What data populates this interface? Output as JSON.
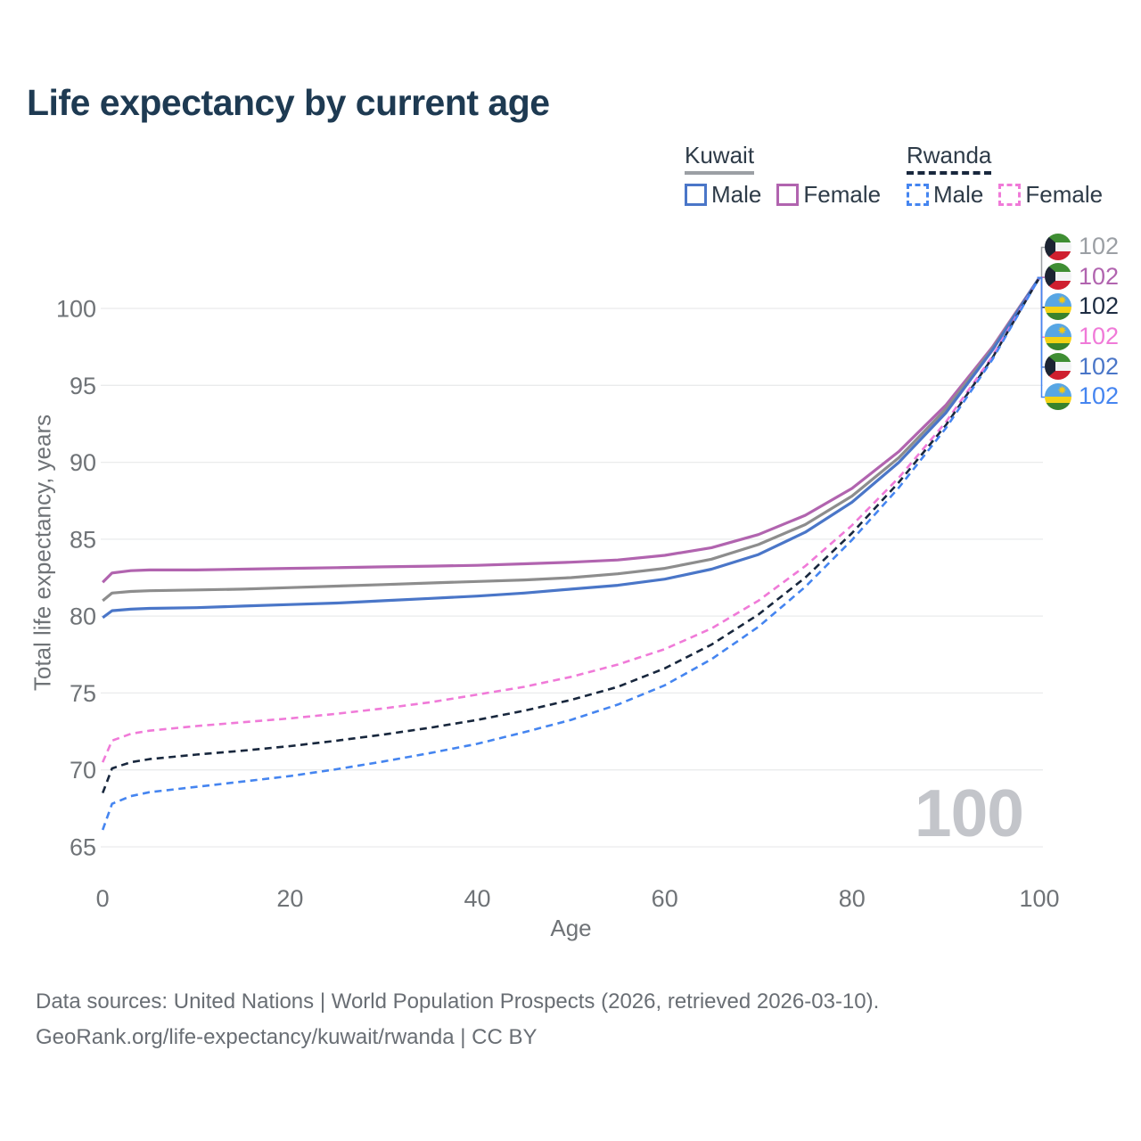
{
  "legend": {
    "groups": [
      {
        "country": "Kuwait",
        "line_style": "solid",
        "underline_color": "#9b9fa4",
        "items": [
          {
            "label": "Male",
            "color": "#4a76c8",
            "dashed": false
          },
          {
            "label": "Female",
            "color": "#b164af",
            "dashed": false
          }
        ]
      },
      {
        "country": "Rwanda",
        "line_style": "dashed",
        "underline_color": "#18273d",
        "items": [
          {
            "label": "Male",
            "color": "#4585f0",
            "dashed": true
          },
          {
            "label": "Female",
            "color": "#f07ad8",
            "dashed": true
          }
        ]
      }
    ]
  },
  "chart_data": {
    "type": "line",
    "title": "Life expectancy by current age",
    "xlabel": "Age",
    "ylabel": "Total life expectancy, years",
    "xlim": [
      0,
      100
    ],
    "ylim": [
      65,
      102
    ],
    "xticks": [
      0,
      20,
      40,
      60,
      80,
      100
    ],
    "yticks": [
      65,
      70,
      75,
      80,
      85,
      90,
      95,
      100
    ],
    "grid": "horizontal",
    "series": [
      {
        "id": "kuwait-female",
        "name": "Kuwait Female",
        "color": "#b164af",
        "dashed": false,
        "end_value": 102,
        "points": [
          [
            0,
            82.2
          ],
          [
            1,
            82.8
          ],
          [
            3,
            82.95
          ],
          [
            5,
            83.0
          ],
          [
            10,
            83.0
          ],
          [
            15,
            83.05
          ],
          [
            20,
            83.1
          ],
          [
            25,
            83.15
          ],
          [
            30,
            83.2
          ],
          [
            35,
            83.25
          ],
          [
            40,
            83.3
          ],
          [
            45,
            83.4
          ],
          [
            50,
            83.5
          ],
          [
            55,
            83.65
          ],
          [
            60,
            83.95
          ],
          [
            65,
            84.45
          ],
          [
            70,
            85.3
          ],
          [
            75,
            86.55
          ],
          [
            80,
            88.3
          ],
          [
            85,
            90.7
          ],
          [
            90,
            93.7
          ],
          [
            95,
            97.5
          ],
          [
            100,
            102
          ]
        ]
      },
      {
        "id": "kuwait-total",
        "name": "Kuwait Total",
        "color": "#8d8d8d",
        "dashed": false,
        "end_value": 102,
        "points": [
          [
            0,
            81.0
          ],
          [
            1,
            81.5
          ],
          [
            3,
            81.6
          ],
          [
            5,
            81.65
          ],
          [
            10,
            81.7
          ],
          [
            15,
            81.75
          ],
          [
            20,
            81.85
          ],
          [
            25,
            81.95
          ],
          [
            30,
            82.05
          ],
          [
            35,
            82.15
          ],
          [
            40,
            82.25
          ],
          [
            45,
            82.35
          ],
          [
            50,
            82.5
          ],
          [
            55,
            82.75
          ],
          [
            60,
            83.1
          ],
          [
            65,
            83.7
          ],
          [
            70,
            84.65
          ],
          [
            75,
            85.95
          ],
          [
            80,
            87.8
          ],
          [
            85,
            90.3
          ],
          [
            90,
            93.45
          ],
          [
            95,
            97.4
          ],
          [
            100,
            102
          ]
        ]
      },
      {
        "id": "kuwait-male",
        "name": "Kuwait Male",
        "color": "#4a76c8",
        "dashed": false,
        "end_value": 102,
        "points": [
          [
            0,
            79.9
          ],
          [
            1,
            80.35
          ],
          [
            3,
            80.45
          ],
          [
            5,
            80.5
          ],
          [
            10,
            80.55
          ],
          [
            15,
            80.65
          ],
          [
            20,
            80.75
          ],
          [
            25,
            80.85
          ],
          [
            30,
            81.0
          ],
          [
            35,
            81.15
          ],
          [
            40,
            81.3
          ],
          [
            45,
            81.5
          ],
          [
            50,
            81.75
          ],
          [
            55,
            82.0
          ],
          [
            60,
            82.4
          ],
          [
            65,
            83.05
          ],
          [
            70,
            84.0
          ],
          [
            75,
            85.45
          ],
          [
            80,
            87.4
          ],
          [
            85,
            90.0
          ],
          [
            90,
            93.2
          ],
          [
            95,
            97.3
          ],
          [
            100,
            102
          ]
        ]
      },
      {
        "id": "rwanda-female",
        "name": "Rwanda Female",
        "color": "#f07ad8",
        "dashed": true,
        "end_value": 102,
        "points": [
          [
            0,
            70.5
          ],
          [
            1,
            71.9
          ],
          [
            3,
            72.35
          ],
          [
            5,
            72.55
          ],
          [
            10,
            72.85
          ],
          [
            15,
            73.1
          ],
          [
            20,
            73.35
          ],
          [
            25,
            73.65
          ],
          [
            30,
            74.0
          ],
          [
            35,
            74.4
          ],
          [
            40,
            74.9
          ],
          [
            45,
            75.4
          ],
          [
            50,
            76.05
          ],
          [
            55,
            76.85
          ],
          [
            60,
            77.85
          ],
          [
            65,
            79.2
          ],
          [
            70,
            81.0
          ],
          [
            75,
            83.25
          ],
          [
            80,
            85.9
          ],
          [
            85,
            89.0
          ],
          [
            90,
            92.6
          ],
          [
            95,
            96.9
          ],
          [
            100,
            102
          ]
        ]
      },
      {
        "id": "rwanda-total",
        "name": "Rwanda Total",
        "color": "#18273d",
        "dashed": true,
        "end_value": 102,
        "points": [
          [
            0,
            68.5
          ],
          [
            1,
            70.1
          ],
          [
            3,
            70.5
          ],
          [
            5,
            70.7
          ],
          [
            10,
            71.0
          ],
          [
            15,
            71.25
          ],
          [
            20,
            71.55
          ],
          [
            25,
            71.9
          ],
          [
            30,
            72.3
          ],
          [
            35,
            72.75
          ],
          [
            40,
            73.25
          ],
          [
            45,
            73.85
          ],
          [
            50,
            74.55
          ],
          [
            55,
            75.4
          ],
          [
            60,
            76.6
          ],
          [
            65,
            78.15
          ],
          [
            70,
            80.1
          ],
          [
            75,
            82.5
          ],
          [
            80,
            85.4
          ],
          [
            85,
            88.7
          ],
          [
            90,
            92.4
          ],
          [
            95,
            96.8
          ],
          [
            100,
            102
          ]
        ]
      },
      {
        "id": "rwanda-male",
        "name": "Rwanda Male",
        "color": "#4585f0",
        "dashed": true,
        "end_value": 102,
        "points": [
          [
            0,
            66.1
          ],
          [
            1,
            67.8
          ],
          [
            3,
            68.3
          ],
          [
            5,
            68.55
          ],
          [
            10,
            68.9
          ],
          [
            15,
            69.25
          ],
          [
            20,
            69.6
          ],
          [
            25,
            70.05
          ],
          [
            30,
            70.55
          ],
          [
            35,
            71.1
          ],
          [
            40,
            71.7
          ],
          [
            45,
            72.45
          ],
          [
            50,
            73.25
          ],
          [
            55,
            74.25
          ],
          [
            60,
            75.5
          ],
          [
            65,
            77.2
          ],
          [
            70,
            79.3
          ],
          [
            75,
            81.9
          ],
          [
            80,
            84.95
          ],
          [
            85,
            88.35
          ],
          [
            90,
            92.2
          ],
          [
            95,
            96.7
          ],
          [
            100,
            102
          ]
        ]
      }
    ]
  },
  "end_labels": [
    {
      "flag": "kuwait",
      "series": "Kuwait Total",
      "value": "102",
      "color": "#9b9fa4"
    },
    {
      "flag": "kuwait",
      "series": "Kuwait Female",
      "value": "102",
      "color": "#b164af"
    },
    {
      "flag": "rwanda",
      "series": "Rwanda Total",
      "value": "102",
      "color": "#1d2c42"
    },
    {
      "flag": "rwanda",
      "series": "Rwanda Female",
      "value": "102",
      "color": "#f07ad8"
    },
    {
      "flag": "kuwait",
      "series": "Kuwait Male",
      "value": "102",
      "color": "#4a76c8"
    },
    {
      "flag": "rwanda",
      "series": "Rwanda Male",
      "value": "102",
      "color": "#4585f0"
    }
  ],
  "watermark": "100",
  "footer": {
    "line1": "Data sources: United Nations | World Population Prospects (2026, retrieved 2026-03-10).",
    "line2": "GeoRank.org/life-expectancy/kuwait/rwanda | CC BY"
  }
}
